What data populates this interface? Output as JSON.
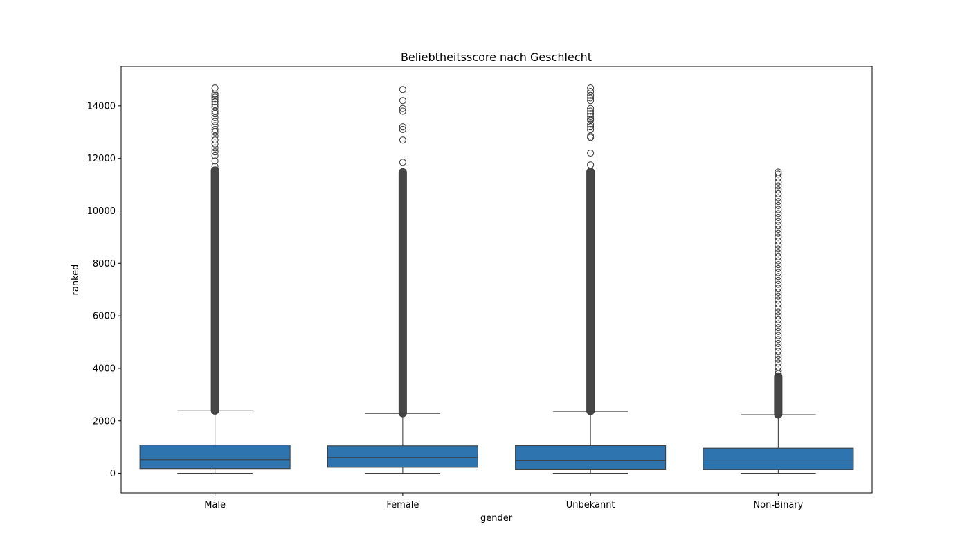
{
  "chart_data": {
    "type": "box",
    "title": "Beliebtheitsscore nach Geschlecht",
    "xlabel": "gender",
    "ylabel": "ranked",
    "ylim": [
      -750,
      15500
    ],
    "yticks": [
      0,
      2000,
      4000,
      6000,
      8000,
      10000,
      12000,
      14000
    ],
    "box_color": "#2e75b0",
    "line_color": "#3f3f3f",
    "categories": [
      "Male",
      "Female",
      "Unbekannt",
      "Non-Binary"
    ],
    "series": [
      {
        "name": "Male",
        "min": 0,
        "q1": 180,
        "median": 520,
        "q3": 1080,
        "max": 2380,
        "outlier_range": [
          2380,
          11550
        ],
        "outliers": [
          11700,
          11900,
          12100,
          12250,
          12400,
          12550,
          12700,
          12850,
          13000,
          13100,
          13250,
          13400,
          13550,
          13700,
          13800,
          13950,
          14050,
          14150,
          14250,
          14330,
          14400,
          14450,
          14680
        ]
      },
      {
        "name": "Female",
        "min": 0,
        "q1": 230,
        "median": 600,
        "q3": 1050,
        "max": 2280,
        "outlier_range": [
          2280,
          11480
        ],
        "outliers": [
          11850,
          12700,
          13100,
          13200,
          13800,
          13900,
          14200,
          14620
        ]
      },
      {
        "name": "Unbekannt",
        "min": 0,
        "q1": 160,
        "median": 500,
        "q3": 1060,
        "max": 2360,
        "outlier_range": [
          2360,
          11500
        ],
        "outliers": [
          11750,
          12200,
          12800,
          12850,
          13100,
          13200,
          13300,
          13450,
          13500,
          13600,
          13700,
          13800,
          13900,
          14200,
          14300,
          14400,
          14550,
          14680
        ]
      },
      {
        "name": "Non-Binary",
        "min": 0,
        "q1": 150,
        "median": 480,
        "q3": 960,
        "max": 2230,
        "outlier_range": [
          2230,
          3700
        ],
        "outliers": [
          3800,
          3900,
          4050,
          4200,
          4350,
          4500,
          4650,
          4800,
          4950,
          5100,
          5250,
          5400,
          5550,
          5700,
          5850,
          6000,
          6150,
          6300,
          6450,
          6600,
          6750,
          6900,
          7050,
          7200,
          7350,
          7500,
          7650,
          7800,
          7950,
          8100,
          8250,
          8400,
          8550,
          8700,
          8850,
          9000,
          9150,
          9300,
          9450,
          9600,
          9750,
          9900,
          10050,
          10200,
          10350,
          10500,
          10650,
          10800,
          10950,
          11100,
          11250,
          11400,
          11480
        ]
      }
    ]
  }
}
